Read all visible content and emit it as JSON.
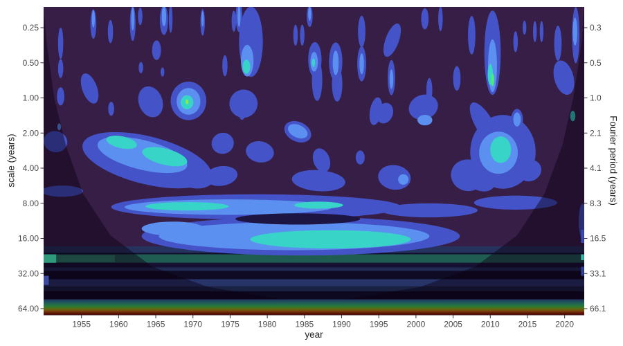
{
  "chart_data": {
    "type": "heatmap",
    "subtype": "continuous wavelet transform power spectrum with cone of influence",
    "title": "",
    "xlabel": "year",
    "ylabel_left": "scale (years)",
    "ylabel_right": "Fourier period (years)",
    "x_ticks": [
      1955,
      1960,
      1965,
      1970,
      1975,
      1980,
      1985,
      1990,
      1995,
      2000,
      2005,
      2010,
      2015,
      2020
    ],
    "x_domain": [
      1949.9,
      2022.6
    ],
    "scale_type": "log2",
    "left_tick_labels": [
      "0.25",
      "0.50",
      "1.00",
      "2.00",
      "4.00",
      "8.00",
      "16.00",
      "32.00",
      "64.00"
    ],
    "left_tick_periods": [
      0.25,
      0.5,
      1,
      2,
      4,
      8,
      16,
      32,
      64
    ],
    "right_tick_labels": [
      "0.3",
      "0.5",
      "1.0",
      "2.1",
      "4.1",
      "8.3",
      "16.5",
      "33.1",
      "66.1"
    ],
    "period_domain": [
      0.166,
      72.6
    ],
    "grid": false,
    "legend": "none",
    "panel_background": "#371e46",
    "axis_text_color": "#4a4a4a",
    "axis_title_color": "#212121",
    "tick_mark_color": "#333333",
    "palette": {
      "1": "#4454c8",
      "2": "#5c90f0",
      "3": "#38d4c8",
      "4": "#4fe87f",
      "5": "#8ce93f",
      "D": "#1d1542"
    },
    "coi": {
      "shade": "rgba(10,0,18,0.45)",
      "points": [
        [
          1949.9,
          0.16
        ],
        [
          1950.3,
          0.33
        ],
        [
          1951.3,
          0.98
        ],
        [
          1952.9,
          2.54
        ],
        [
          1955.2,
          6.6
        ],
        [
          1958.9,
          15.1
        ],
        [
          1964.5,
          27.9
        ],
        [
          1972.0,
          41.7
        ],
        [
          1981.3,
          52.5
        ],
        [
          1987.8,
          56.2
        ],
        [
          1991.3,
          52.5
        ],
        [
          2000.6,
          41.7
        ],
        [
          2008.0,
          27.9
        ],
        [
          2013.6,
          15.1
        ],
        [
          2017.3,
          6.6
        ],
        [
          2019.7,
          2.54
        ],
        [
          2021.2,
          0.98
        ],
        [
          2022.3,
          0.33
        ],
        [
          2022.6,
          0.16
        ]
      ]
    },
    "bands": [
      {
        "p0": 18.7,
        "p1": 21.3,
        "c": "#26325e"
      },
      {
        "p0": 21.3,
        "p1": 21.9,
        "c": "#120d2c"
      },
      {
        "p0": 21.9,
        "p1": 25.9,
        "c": "#1f5c52"
      },
      {
        "p0": 22.2,
        "p1": 25.6,
        "x0": 1951.4,
        "x1": 1959.5,
        "c": "#2b8468"
      },
      {
        "p0": 25.9,
        "p1": 28.4,
        "c": "#161132"
      },
      {
        "p0": 28.4,
        "p1": 30.4,
        "c": "#202a52"
      },
      {
        "p0": 30.4,
        "p1": 35.8,
        "c": "#0f0b24"
      },
      {
        "p0": 35.8,
        "p1": 41.2,
        "c": "#273468"
      },
      {
        "p0": 41.2,
        "p1": 45.4,
        "c": "#1a2243"
      },
      {
        "p0": 45.4,
        "p1": 53.2,
        "c": "#0d0920"
      }
    ],
    "bottom_gradient": {
      "p0": 53.2,
      "p1": 72.6,
      "stops": [
        [
          0,
          "#22305c"
        ],
        [
          0.16,
          "#1f525e"
        ],
        [
          0.32,
          "#226b4e"
        ],
        [
          0.46,
          "#2e7a33"
        ],
        [
          0.6,
          "#5c6b15"
        ],
        [
          0.74,
          "#7d480f"
        ],
        [
          0.88,
          "#601407"
        ],
        [
          1,
          "#49100a"
        ]
      ]
    },
    "blobs": [
      {
        "x": 1952.2,
        "p": 0.34,
        "rx": 0.35,
        "ry": 0.45,
        "l": 1
      },
      {
        "x": 1952.2,
        "p": 0.56,
        "rx": 0.35,
        "ry": 0.27,
        "l": 1
      },
      {
        "x": 1952.2,
        "p": 0.97,
        "rx": 0.5,
        "ry": 0.26,
        "l": 1
      },
      {
        "x": 1956.6,
        "p": 0.233,
        "rx": 0.4,
        "ry": 0.42,
        "l": 1
      },
      {
        "x": 1958.9,
        "p": 0.27,
        "rx": 0.35,
        "ry": 0.33,
        "l": 1
      },
      {
        "x": 1961.9,
        "p": 0.23,
        "rx": 0.38,
        "ry": 0.5,
        "l": 1
      },
      {
        "x": 1962.9,
        "p": 0.2,
        "rx": 0.3,
        "ry": 0.25,
        "l": 1
      },
      {
        "x": 1966.1,
        "p": 0.216,
        "rx": 0.55,
        "ry": 0.42,
        "l": 1
      },
      {
        "x": 1967.0,
        "p": 0.21,
        "rx": 0.25,
        "ry": 0.4,
        "l": 1
      },
      {
        "x": 1965.1,
        "p": 0.39,
        "rx": 0.6,
        "ry": 0.28,
        "l": 1
      },
      {
        "x": 1963.0,
        "p": 0.55,
        "rx": 0.3,
        "ry": 0.16,
        "l": 1
      },
      {
        "x": 1965.9,
        "p": 0.6,
        "rx": 0.25,
        "ry": 0.13,
        "l": 1
      },
      {
        "x": 1971.3,
        "p": 0.225,
        "rx": 0.3,
        "ry": 0.38,
        "l": 1
      },
      {
        "x": 1974.3,
        "p": 0.53,
        "rx": 0.35,
        "ry": 0.3,
        "l": 1
      },
      {
        "x": 1975.5,
        "p": 0.22,
        "rx": 0.3,
        "ry": 0.3,
        "l": 1
      },
      {
        "x": 1977.8,
        "p": 0.33,
        "rx": 1.6,
        "ry": 1.0,
        "l": 1
      },
      {
        "x": 1976.2,
        "p": 0.2,
        "rx": 0.45,
        "ry": 0.45,
        "l": 1
      },
      {
        "x": 1983.8,
        "p": 0.29,
        "rx": 0.3,
        "ry": 0.3,
        "l": 1
      },
      {
        "x": 1984.7,
        "p": 0.29,
        "rx": 0.3,
        "ry": 0.3,
        "l": 1
      },
      {
        "x": 1985.7,
        "p": 0.2,
        "rx": 0.4,
        "ry": 0.3,
        "l": 1
      },
      {
        "x": 1986.4,
        "p": 0.47,
        "rx": 0.9,
        "ry": 0.5,
        "l": 1
      },
      {
        "x": 1989.2,
        "p": 0.49,
        "rx": 0.9,
        "ry": 0.55,
        "l": 1
      },
      {
        "x": 1992.7,
        "p": 0.27,
        "rx": 0.5,
        "ry": 0.45,
        "l": 1
      },
      {
        "x": 1992.7,
        "p": 0.51,
        "rx": 0.6,
        "ry": 0.5,
        "l": 1
      },
      {
        "x": 1996.8,
        "p": 0.32,
        "rx": 0.9,
        "ry": 0.5,
        "rot": 20,
        "l": 1
      },
      {
        "x": 1996.7,
        "p": 0.67,
        "rx": 0.5,
        "ry": 0.5,
        "l": 1
      },
      {
        "x": 2001.2,
        "p": 0.21,
        "rx": 0.5,
        "ry": 0.3,
        "l": 1
      },
      {
        "x": 2003.3,
        "p": 0.21,
        "rx": 0.3,
        "ry": 0.35,
        "l": 1
      },
      {
        "x": 2001.8,
        "p": 0.86,
        "rx": 0.4,
        "ry": 0.35,
        "l": 1
      },
      {
        "x": 2005.5,
        "p": 0.68,
        "rx": 0.5,
        "ry": 0.35,
        "l": 1
      },
      {
        "x": 2007.5,
        "p": 0.29,
        "rx": 0.5,
        "ry": 0.55,
        "l": 1
      },
      {
        "x": 2010.3,
        "p": 0.41,
        "rx": 1.1,
        "ry": 1.2,
        "l": 1
      },
      {
        "x": 2013.4,
        "p": 0.33,
        "rx": 0.3,
        "ry": 0.3,
        "l": 1
      },
      {
        "x": 2014.6,
        "p": 0.25,
        "rx": 0.25,
        "ry": 0.2,
        "l": 1
      },
      {
        "x": 2016.0,
        "p": 0.27,
        "rx": 0.25,
        "ry": 0.3,
        "l": 1
      },
      {
        "x": 2016.9,
        "p": 0.27,
        "rx": 0.25,
        "ry": 0.3,
        "l": 1
      },
      {
        "x": 2019.1,
        "p": 0.34,
        "rx": 0.5,
        "ry": 0.5,
        "l": 1
      },
      {
        "x": 2021.5,
        "p": 0.29,
        "rx": 0.5,
        "ry": 0.8,
        "l": 1
      },
      {
        "x": 2013.6,
        "p": 1.53,
        "rx": 0.8,
        "ry": 0.3,
        "l": 1
      },
      {
        "x": 1956.1,
        "p": 0.83,
        "rx": 1.0,
        "ry": 0.45,
        "rot": -20,
        "l": 1
      },
      {
        "x": 1964.3,
        "p": 1.08,
        "rx": 1.6,
        "ry": 0.45,
        "rot": -20,
        "l": 1
      },
      {
        "x": 1959.0,
        "p": 1.24,
        "rx": 0.4,
        "ry": 0.2,
        "l": 1
      },
      {
        "x": 1969.4,
        "p": 1.06,
        "rx": 2.4,
        "ry": 0.55,
        "l": 1
      },
      {
        "x": 1976.6,
        "p": 1.21,
        "rx": 0.55,
        "ry": 0.35,
        "l": 1
      },
      {
        "x": 1976.8,
        "p": 1.12,
        "rx": 1.9,
        "ry": 0.4,
        "rot": -35,
        "l": 1
      },
      {
        "x": 1986.7,
        "p": 0.7,
        "rx": 0.7,
        "ry": 0.6,
        "l": 1
      },
      {
        "x": 1989.4,
        "p": 0.76,
        "rx": 0.7,
        "ry": 0.5,
        "l": 1
      },
      {
        "x": 1994.6,
        "p": 1.3,
        "rx": 0.8,
        "ry": 0.4,
        "rot": 10,
        "l": 1
      },
      {
        "x": 1995.8,
        "p": 1.35,
        "rx": 1.1,
        "ry": 0.3,
        "rot": 20,
        "l": 1
      },
      {
        "x": 2001.0,
        "p": 1.2,
        "rx": 2.0,
        "ry": 0.35,
        "rot": -20,
        "l": 1
      },
      {
        "x": 2009.2,
        "p": 1.68,
        "rx": 1.2,
        "ry": 0.7,
        "rot": -30,
        "l": 1
      },
      {
        "x": 2019.9,
        "p": 0.67,
        "rx": 1.3,
        "ry": 0.5,
        "rot": -15,
        "l": 1
      },
      {
        "x": 1951.5,
        "p": 2.37,
        "rx": 1.6,
        "ry": 0.3,
        "rot": 12,
        "l": 1
      },
      {
        "x": 1963.8,
        "p": 3.42,
        "rx": 8.9,
        "ry": 0.68,
        "rot": 14,
        "l": 1
      },
      {
        "x": 1970.6,
        "p": 4.86,
        "rx": 2.3,
        "ry": 0.3,
        "l": 1
      },
      {
        "x": 1974.0,
        "p": 2.45,
        "rx": 1.5,
        "ry": 0.3,
        "rot": -15,
        "l": 1
      },
      {
        "x": 1979.0,
        "p": 2.9,
        "rx": 1.9,
        "ry": 0.3,
        "rot": 10,
        "l": 1
      },
      {
        "x": 1984.1,
        "p": 1.95,
        "rx": 1.9,
        "ry": 0.28,
        "rot": 25,
        "l": 1
      },
      {
        "x": 1987.3,
        "p": 3.42,
        "rx": 1.1,
        "ry": 0.35,
        "rot": -20,
        "l": 1
      },
      {
        "x": 1992.5,
        "p": 3.24,
        "rx": 0.6,
        "ry": 0.2,
        "l": 1
      },
      {
        "x": 1997.1,
        "p": 4.8,
        "rx": 2.2,
        "ry": 0.35,
        "rot": 8,
        "l": 1
      },
      {
        "x": 2011.7,
        "p": 2.9,
        "rx": 4.4,
        "ry": 1.05,
        "l": 1
      },
      {
        "x": 2007.0,
        "p": 4.6,
        "rx": 2.3,
        "ry": 0.45,
        "rot": 10,
        "l": 1
      },
      {
        "x": 2008.8,
        "p": 5.1,
        "rx": 1.9,
        "ry": 0.3,
        "rot": 20,
        "l": 1
      },
      {
        "x": 2015.3,
        "p": 4.2,
        "rx": 1.6,
        "ry": 0.3,
        "rot": -25,
        "l": 1
      },
      {
        "x": 2022.4,
        "p": 11.4,
        "rx": 0.5,
        "ry": 0.5,
        "l": 1
      },
      {
        "x": 1973.8,
        "p": 4.67,
        "rx": 2.2,
        "ry": 0.28,
        "rot": -8,
        "l": 1
      },
      {
        "x": 1986.9,
        "p": 5.12,
        "rx": 3.6,
        "ry": 0.3,
        "rot": 4,
        "l": 1
      },
      {
        "x": 1952.4,
        "p": 6.3,
        "rx": 2.8,
        "ry": 0.16,
        "l": 1
      },
      {
        "x": 1978.5,
        "p": 8.6,
        "rx": 19.5,
        "ry": 0.36,
        "l": 1
      },
      {
        "x": 2013.4,
        "p": 7.9,
        "rx": 5.6,
        "ry": 0.2,
        "l": 1
      },
      {
        "x": 2001.8,
        "p": 9.2,
        "rx": 6.5,
        "ry": 0.2,
        "l": 1
      },
      {
        "x": 1984.5,
        "p": 15.3,
        "rx": 21.4,
        "ry": 0.55,
        "l": 1
      },
      {
        "x": 1956.6,
        "p": 0.21,
        "rx": 0.2,
        "ry": 0.25,
        "l": 2
      },
      {
        "x": 1961.9,
        "p": 0.21,
        "rx": 0.2,
        "ry": 0.33,
        "l": 2
      },
      {
        "x": 1966.1,
        "p": 0.2,
        "rx": 0.3,
        "ry": 0.28,
        "l": 2
      },
      {
        "x": 1971.3,
        "p": 0.21,
        "rx": 0.15,
        "ry": 0.22,
        "l": 2
      },
      {
        "x": 1977.3,
        "p": 0.48,
        "rx": 0.85,
        "ry": 0.45,
        "l": 2
      },
      {
        "x": 1976.2,
        "p": 0.2,
        "rx": 0.2,
        "ry": 0.3,
        "l": 2
      },
      {
        "x": 1985.7,
        "p": 0.19,
        "rx": 0.2,
        "ry": 0.2,
        "l": 2
      },
      {
        "x": 1986.3,
        "p": 0.49,
        "rx": 0.5,
        "ry": 0.28,
        "l": 2
      },
      {
        "x": 1989.2,
        "p": 0.5,
        "rx": 0.4,
        "ry": 0.35,
        "l": 2
      },
      {
        "x": 1992.7,
        "p": 0.51,
        "rx": 0.3,
        "ry": 0.3,
        "l": 2
      },
      {
        "x": 1996.7,
        "p": 0.69,
        "rx": 0.25,
        "ry": 0.28,
        "l": 2
      },
      {
        "x": 2010.3,
        "p": 0.53,
        "rx": 0.6,
        "ry": 0.75,
        "l": 2
      },
      {
        "x": 2013.6,
        "p": 1.53,
        "rx": 0.5,
        "ry": 0.2,
        "l": 2
      },
      {
        "x": 2021.4,
        "p": 0.27,
        "rx": 0.3,
        "ry": 0.4,
        "l": 2
      },
      {
        "x": 1969.4,
        "p": 1.07,
        "rx": 1.6,
        "ry": 0.38,
        "l": 2
      },
      {
        "x": 1963.2,
        "p": 3.08,
        "rx": 6.2,
        "ry": 0.42,
        "rot": 14,
        "l": 2
      },
      {
        "x": 1984.1,
        "p": 1.93,
        "rx": 1.4,
        "ry": 0.18,
        "rot": 25,
        "l": 2
      },
      {
        "x": 1998.3,
        "p": 5.0,
        "rx": 0.7,
        "ry": 0.15,
        "l": 2
      },
      {
        "x": 2011.1,
        "p": 2.95,
        "rx": 2.6,
        "ry": 0.6,
        "l": 2
      },
      {
        "x": 2001.2,
        "p": 1.55,
        "rx": 1.0,
        "ry": 0.15,
        "l": 2
      },
      {
        "x": 1952.0,
        "p": 1.77,
        "rx": 0.25,
        "ry": 0.1,
        "l": 2
      },
      {
        "x": 1974.8,
        "p": 8.63,
        "rx": 14.0,
        "ry": 0.22,
        "l": 2
      },
      {
        "x": 1983.6,
        "p": 15.3,
        "rx": 18.2,
        "ry": 0.4,
        "l": 2
      },
      {
        "x": 1967.3,
        "p": 13.2,
        "rx": 4.2,
        "ry": 0.2,
        "l": 2
      },
      {
        "x": 1984.1,
        "p": 10.9,
        "rx": 8.4,
        "ry": 0.16,
        "l": "D"
      },
      {
        "x": 1977.2,
        "p": 0.54,
        "rx": 0.5,
        "ry": 0.2,
        "l": 3
      },
      {
        "x": 1986.2,
        "p": 0.5,
        "rx": 0.22,
        "ry": 0.12,
        "l": 3
      },
      {
        "x": 2010.0,
        "p": 0.63,
        "rx": 0.35,
        "ry": 0.3,
        "l": 3
      },
      {
        "x": 1960.4,
        "p": 2.4,
        "rx": 2.1,
        "ry": 0.17,
        "rot": 12,
        "l": 3
      },
      {
        "x": 1966.2,
        "p": 3.19,
        "rx": 3.1,
        "ry": 0.23,
        "rot": 14,
        "l": 3
      },
      {
        "x": 1969.2,
        "p": 1.09,
        "rx": 0.85,
        "ry": 0.2,
        "l": 3
      },
      {
        "x": 2011.4,
        "p": 2.78,
        "rx": 1.4,
        "ry": 0.38,
        "l": 3
      },
      {
        "x": 2021.1,
        "p": 1.43,
        "rx": 0.35,
        "ry": 0.15,
        "l": 3
      },
      {
        "x": 1969.2,
        "p": 8.5,
        "rx": 5.6,
        "ry": 0.12,
        "l": 3
      },
      {
        "x": 1986.9,
        "p": 8.3,
        "rx": 3.3,
        "ry": 0.1,
        "l": 3
      },
      {
        "x": 1988.5,
        "p": 16.3,
        "rx": 10.8,
        "ry": 0.26,
        "l": 3
      },
      {
        "x": 2010.3,
        "p": 0.7,
        "rx": 0.22,
        "ry": 0.18,
        "l": 4
      },
      {
        "x": 1969.2,
        "p": 1.08,
        "rx": 0.2,
        "ry": 0.07,
        "l": 5
      }
    ],
    "edge_marks": [
      {
        "x0": 1949.9,
        "x1": 1951.6,
        "p0": 21.9,
        "p1": 25.9,
        "c": "#2f9a7c"
      },
      {
        "x0": 1949.9,
        "x1": 1950.6,
        "p0": 33.5,
        "p1": 40.1,
        "c": "#3a4a9e"
      },
      {
        "x0": 2022.2,
        "x1": 2022.6,
        "p0": 21.9,
        "p1": 24.6,
        "c": "#35b8a8"
      },
      {
        "x0": 2022.2,
        "x1": 2022.6,
        "p0": 13.5,
        "p1": 17.5,
        "c": "#3a4ab0"
      },
      {
        "x0": 2022.2,
        "x1": 2022.6,
        "p0": 28.0,
        "p1": 33.5,
        "c": "#2e3f96"
      }
    ]
  }
}
